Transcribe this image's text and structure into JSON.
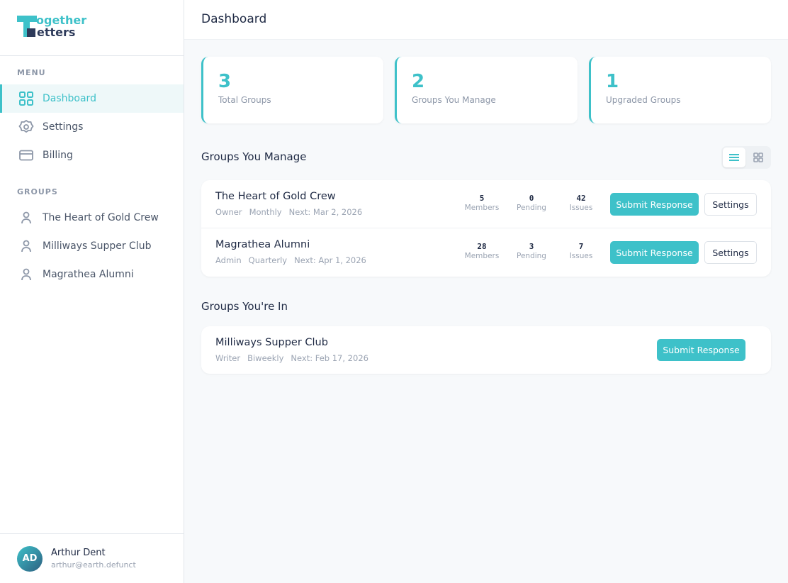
{
  "logo": {
    "text": "Together Letters"
  },
  "sidebar": {
    "menu_label": "MENU",
    "menu": [
      {
        "label": "Dashboard",
        "icon": "grid-icon",
        "active": true
      },
      {
        "label": "Settings",
        "icon": "gear-icon"
      },
      {
        "label": "Billing",
        "icon": "credit-card-icon"
      }
    ],
    "groups_label": "GROUPS",
    "groups": [
      {
        "label": "The Heart of Gold Crew"
      },
      {
        "label": "Milliways Supper Club"
      },
      {
        "label": "Magrathea Alumni"
      }
    ]
  },
  "user": {
    "initials": "AD",
    "name": "Arthur Dent",
    "email": "arthur@earth.defunct"
  },
  "header": {
    "title": "Dashboard"
  },
  "stats": [
    {
      "value": "3",
      "label": "Total Groups"
    },
    {
      "value": "2",
      "label": "Groups You Manage"
    },
    {
      "value": "1",
      "label": "Upgraded Groups"
    }
  ],
  "manage": {
    "title": "Groups You Manage",
    "view": "list",
    "groups": [
      {
        "name": "The Heart of Gold Crew",
        "role": "Owner",
        "freq": "Monthly",
        "next": "Next: Mar 2, 2026",
        "members": "5",
        "pending": "0",
        "issues": "42"
      },
      {
        "name": "Magrathea Alumni",
        "role": "Admin",
        "freq": "Quarterly",
        "next": "Next: Apr 1, 2026",
        "members": "28",
        "pending": "3",
        "issues": "7"
      }
    ]
  },
  "labels": {
    "members": "Members",
    "pending": "Pending",
    "issues": "Issues",
    "submit": "Submit Response",
    "settings": "Settings"
  },
  "member": {
    "title": "Groups You're In",
    "groups": [
      {
        "name": "Milliways Supper Club",
        "role": "Writer",
        "freq": "Biweekly",
        "next": "Next: Feb 17, 2026"
      }
    ]
  },
  "colors": {
    "accent": "#3ec1c9",
    "text": "#1f2a44"
  }
}
